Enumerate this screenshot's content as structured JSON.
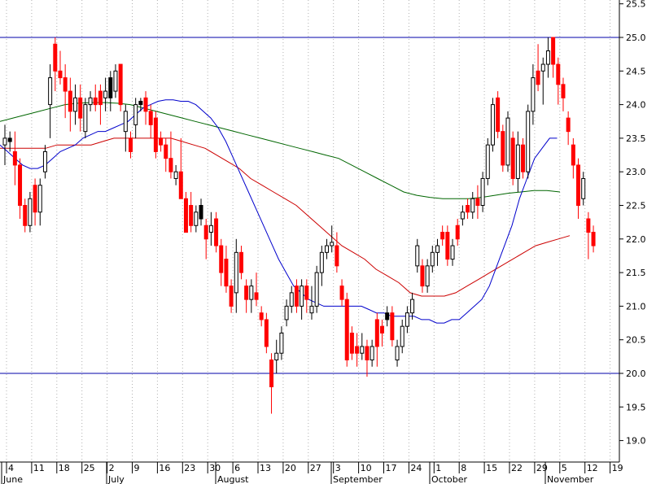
{
  "chart_data": {
    "type": "candlestick",
    "title": "",
    "xlabel": "",
    "ylabel": "",
    "ylim": [
      18.8,
      25.6
    ],
    "y_ticks": [
      "19.0",
      "19.5",
      "20.0",
      "20.5",
      "21.0",
      "21.5",
      "22.0",
      "22.5",
      "23.0",
      "23.5",
      "24.0",
      "24.5",
      "25.0",
      "25.5"
    ],
    "x_day_ticks": [
      "4",
      "11",
      "18",
      "25",
      "2",
      "9",
      "16",
      "23",
      "30",
      "6",
      "13",
      "20",
      "27",
      "3",
      "10",
      "17",
      "24",
      "1",
      "8",
      "15",
      "22",
      "29",
      "5",
      "12",
      "19"
    ],
    "months": [
      "June",
      "July",
      "August",
      "September",
      "October",
      "November"
    ],
    "horizontal_lines": [
      25.0,
      20.0
    ],
    "grid": "vertical dotted",
    "colors": {
      "up_candle": "#ffffff",
      "down_candle": "#ff0000",
      "black_candle": "#000000",
      "ma_fast": "#0000cc",
      "ma_mid": "#cc0000",
      "ma_slow": "#006600",
      "hline": "#0000aa"
    },
    "candles": [
      {
        "o": 23.4,
        "h": 23.7,
        "l": 23.1,
        "c": 23.5,
        "t": "up"
      },
      {
        "o": 23.5,
        "h": 23.6,
        "l": 23.3,
        "c": 23.45,
        "t": "black"
      },
      {
        "o": 23.3,
        "h": 23.6,
        "l": 22.8,
        "c": 23.1,
        "t": "down"
      },
      {
        "o": 23.1,
        "h": 23.2,
        "l": 22.3,
        "c": 22.5,
        "t": "down"
      },
      {
        "o": 22.5,
        "h": 22.6,
        "l": 22.1,
        "c": 22.2,
        "t": "down"
      },
      {
        "o": 22.2,
        "h": 22.7,
        "l": 22.1,
        "c": 22.6,
        "t": "up"
      },
      {
        "o": 22.8,
        "h": 22.9,
        "l": 22.2,
        "c": 22.4,
        "t": "down"
      },
      {
        "o": 22.4,
        "h": 22.9,
        "l": 22.2,
        "c": 22.8,
        "t": "up"
      },
      {
        "o": 23.0,
        "h": 23.4,
        "l": 22.9,
        "c": 23.3,
        "t": "up"
      },
      {
        "o": 24.0,
        "h": 24.6,
        "l": 23.5,
        "c": 24.4,
        "t": "up"
      },
      {
        "o": 24.9,
        "h": 25.0,
        "l": 24.2,
        "c": 24.5,
        "t": "down"
      },
      {
        "o": 24.5,
        "h": 24.8,
        "l": 24.3,
        "c": 24.4,
        "t": "down"
      },
      {
        "o": 24.4,
        "h": 24.6,
        "l": 23.8,
        "c": 24.2,
        "t": "down"
      },
      {
        "o": 24.2,
        "h": 24.4,
        "l": 23.6,
        "c": 23.9,
        "t": "down"
      },
      {
        "o": 23.9,
        "h": 24.3,
        "l": 23.7,
        "c": 24.1,
        "t": "up"
      },
      {
        "o": 24.1,
        "h": 24.3,
        "l": 23.6,
        "c": 23.8,
        "t": "down"
      },
      {
        "o": 23.6,
        "h": 24.1,
        "l": 23.5,
        "c": 24.0,
        "t": "up"
      },
      {
        "o": 24.0,
        "h": 24.2,
        "l": 23.9,
        "c": 24.1,
        "t": "up"
      },
      {
        "o": 24.1,
        "h": 24.3,
        "l": 23.9,
        "c": 24.0,
        "t": "down"
      },
      {
        "o": 24.0,
        "h": 24.3,
        "l": 23.7,
        "c": 24.2,
        "t": "down"
      },
      {
        "o": 24.2,
        "h": 24.4,
        "l": 23.9,
        "c": 24.1,
        "t": "up"
      },
      {
        "o": 24.1,
        "h": 24.5,
        "l": 23.9,
        "c": 24.4,
        "t": "black"
      },
      {
        "o": 24.2,
        "h": 24.6,
        "l": 24.1,
        "c": 24.5,
        "t": "up"
      },
      {
        "o": 24.6,
        "h": 24.6,
        "l": 23.9,
        "c": 24.0,
        "t": "down"
      },
      {
        "o": 23.9,
        "h": 24.0,
        "l": 23.3,
        "c": 23.6,
        "t": "up"
      },
      {
        "o": 23.5,
        "h": 23.6,
        "l": 23.2,
        "c": 23.3,
        "t": "down"
      },
      {
        "o": 23.7,
        "h": 24.1,
        "l": 23.5,
        "c": 24.0,
        "t": "up"
      },
      {
        "o": 24.0,
        "h": 24.1,
        "l": 23.9,
        "c": 24.05,
        "t": "black"
      },
      {
        "o": 24.1,
        "h": 24.2,
        "l": 23.7,
        "c": 23.9,
        "t": "down"
      },
      {
        "o": 23.9,
        "h": 24.0,
        "l": 23.5,
        "c": 23.7,
        "t": "down"
      },
      {
        "o": 23.8,
        "h": 23.9,
        "l": 23.2,
        "c": 23.3,
        "t": "down"
      },
      {
        "o": 23.5,
        "h": 23.6,
        "l": 23.3,
        "c": 23.4,
        "t": "down"
      },
      {
        "o": 23.4,
        "h": 23.5,
        "l": 23.0,
        "c": 23.2,
        "t": "down"
      },
      {
        "o": 23.2,
        "h": 23.6,
        "l": 22.9,
        "c": 23.0,
        "t": "down"
      },
      {
        "o": 23.0,
        "h": 23.1,
        "l": 22.8,
        "c": 22.9,
        "t": "up"
      },
      {
        "o": 23.0,
        "h": 23.5,
        "l": 22.6,
        "c": 22.6,
        "t": "down"
      },
      {
        "o": 22.6,
        "h": 22.7,
        "l": 22.1,
        "c": 22.1,
        "t": "down"
      },
      {
        "o": 22.5,
        "h": 22.7,
        "l": 22.1,
        "c": 22.2,
        "t": "down"
      },
      {
        "o": 22.2,
        "h": 22.5,
        "l": 22.1,
        "c": 22.4,
        "t": "up"
      },
      {
        "o": 22.5,
        "h": 22.6,
        "l": 22.2,
        "c": 22.3,
        "t": "black"
      },
      {
        "o": 22.2,
        "h": 22.3,
        "l": 21.7,
        "c": 22.0,
        "t": "down"
      },
      {
        "o": 22.1,
        "h": 22.4,
        "l": 21.9,
        "c": 22.2,
        "t": "up"
      },
      {
        "o": 22.3,
        "h": 22.4,
        "l": 21.8,
        "c": 21.9,
        "t": "down"
      },
      {
        "o": 21.9,
        "h": 22.0,
        "l": 21.3,
        "c": 21.5,
        "t": "down"
      },
      {
        "o": 21.7,
        "h": 21.9,
        "l": 21.2,
        "c": 21.3,
        "t": "down"
      },
      {
        "o": 21.3,
        "h": 21.4,
        "l": 20.9,
        "c": 21.0,
        "t": "down"
      },
      {
        "o": 21.2,
        "h": 22.0,
        "l": 20.9,
        "c": 21.8,
        "t": "up"
      },
      {
        "o": 21.8,
        "h": 21.9,
        "l": 21.4,
        "c": 21.5,
        "t": "down"
      },
      {
        "o": 21.3,
        "h": 21.4,
        "l": 20.9,
        "c": 21.1,
        "t": "down"
      },
      {
        "o": 21.1,
        "h": 21.4,
        "l": 20.9,
        "c": 21.3,
        "t": "up"
      },
      {
        "o": 21.2,
        "h": 21.5,
        "l": 21.0,
        "c": 21.1,
        "t": "down"
      },
      {
        "o": 20.9,
        "h": 21.0,
        "l": 20.7,
        "c": 20.8,
        "t": "down"
      },
      {
        "o": 20.8,
        "h": 20.9,
        "l": 20.3,
        "c": 20.4,
        "t": "down"
      },
      {
        "o": 20.2,
        "h": 20.3,
        "l": 19.4,
        "c": 19.8,
        "t": "down"
      },
      {
        "o": 20.2,
        "h": 20.5,
        "l": 20.0,
        "c": 20.3,
        "t": "up"
      },
      {
        "o": 20.3,
        "h": 20.7,
        "l": 20.2,
        "c": 20.6,
        "t": "up"
      },
      {
        "o": 20.8,
        "h": 21.1,
        "l": 20.7,
        "c": 21.0,
        "t": "up"
      },
      {
        "o": 21.0,
        "h": 21.3,
        "l": 20.9,
        "c": 21.2,
        "t": "up"
      },
      {
        "o": 21.3,
        "h": 21.4,
        "l": 20.9,
        "c": 21.0,
        "t": "down"
      },
      {
        "o": 21.0,
        "h": 21.4,
        "l": 20.8,
        "c": 21.3,
        "t": "up"
      },
      {
        "o": 21.3,
        "h": 21.4,
        "l": 20.9,
        "c": 21.1,
        "t": "down"
      },
      {
        "o": 20.9,
        "h": 21.3,
        "l": 20.8,
        "c": 21.0,
        "t": "up"
      },
      {
        "o": 21.0,
        "h": 21.6,
        "l": 20.9,
        "c": 21.5,
        "t": "up"
      },
      {
        "o": 21.5,
        "h": 21.9,
        "l": 21.3,
        "c": 21.8,
        "t": "up"
      },
      {
        "o": 21.8,
        "h": 22.0,
        "l": 21.7,
        "c": 21.9,
        "t": "up"
      },
      {
        "o": 21.9,
        "h": 22.2,
        "l": 21.8,
        "c": 21.95,
        "t": "up"
      },
      {
        "o": 21.9,
        "h": 22.1,
        "l": 21.5,
        "c": 21.6,
        "t": "down"
      },
      {
        "o": 21.3,
        "h": 21.4,
        "l": 21.0,
        "c": 21.1,
        "t": "down"
      },
      {
        "o": 21.1,
        "h": 21.2,
        "l": 20.1,
        "c": 20.2,
        "t": "down"
      },
      {
        "o": 20.6,
        "h": 20.7,
        "l": 20.2,
        "c": 20.3,
        "t": "down"
      },
      {
        "o": 20.4,
        "h": 20.6,
        "l": 20.1,
        "c": 20.3,
        "t": "down"
      },
      {
        "o": 20.3,
        "h": 20.6,
        "l": 20.2,
        "c": 20.4,
        "t": "up"
      },
      {
        "o": 20.4,
        "h": 20.5,
        "l": 19.95,
        "c": 20.2,
        "t": "down"
      },
      {
        "o": 20.2,
        "h": 20.5,
        "l": 20.1,
        "c": 20.4,
        "t": "up"
      },
      {
        "o": 20.4,
        "h": 20.9,
        "l": 20.1,
        "c": 20.8,
        "t": "down"
      },
      {
        "o": 20.6,
        "h": 20.8,
        "l": 20.4,
        "c": 20.7,
        "t": "down"
      },
      {
        "o": 20.8,
        "h": 21.0,
        "l": 20.7,
        "c": 20.9,
        "t": "black"
      },
      {
        "o": 20.9,
        "h": 21.0,
        "l": 20.4,
        "c": 20.5,
        "t": "down"
      },
      {
        "o": 20.2,
        "h": 20.5,
        "l": 20.1,
        "c": 20.4,
        "t": "up"
      },
      {
        "o": 20.4,
        "h": 20.8,
        "l": 20.3,
        "c": 20.7,
        "t": "up"
      },
      {
        "o": 20.7,
        "h": 21.0,
        "l": 20.6,
        "c": 20.9,
        "t": "up"
      },
      {
        "o": 20.9,
        "h": 21.2,
        "l": 20.8,
        "c": 21.1,
        "t": "up"
      },
      {
        "o": 21.6,
        "h": 22.0,
        "l": 21.5,
        "c": 21.9,
        "t": "up"
      },
      {
        "o": 21.6,
        "h": 21.7,
        "l": 21.2,
        "c": 21.3,
        "t": "down"
      },
      {
        "o": 21.3,
        "h": 21.7,
        "l": 21.2,
        "c": 21.6,
        "t": "up"
      },
      {
        "o": 21.6,
        "h": 21.9,
        "l": 21.5,
        "c": 21.8,
        "t": "up"
      },
      {
        "o": 21.8,
        "h": 22.0,
        "l": 21.6,
        "c": 21.9,
        "t": "up"
      },
      {
        "o": 22.1,
        "h": 22.2,
        "l": 21.9,
        "c": 22.0,
        "t": "down"
      },
      {
        "o": 22.1,
        "h": 22.2,
        "l": 21.6,
        "c": 21.7,
        "t": "down"
      },
      {
        "o": 21.7,
        "h": 22.0,
        "l": 21.6,
        "c": 21.9,
        "t": "up"
      },
      {
        "o": 22.0,
        "h": 22.3,
        "l": 21.9,
        "c": 22.2,
        "t": "down"
      },
      {
        "o": 22.3,
        "h": 22.5,
        "l": 22.2,
        "c": 22.4,
        "t": "up"
      },
      {
        "o": 22.5,
        "h": 22.6,
        "l": 22.3,
        "c": 22.4,
        "t": "down"
      },
      {
        "o": 22.4,
        "h": 22.7,
        "l": 22.3,
        "c": 22.6,
        "t": "up"
      },
      {
        "o": 22.6,
        "h": 22.8,
        "l": 22.3,
        "c": 22.5,
        "t": "down"
      },
      {
        "o": 22.5,
        "h": 23.0,
        "l": 22.4,
        "c": 22.9,
        "t": "up"
      },
      {
        "o": 22.9,
        "h": 23.5,
        "l": 22.8,
        "c": 23.4,
        "t": "up"
      },
      {
        "o": 23.4,
        "h": 24.1,
        "l": 23.3,
        "c": 24.0,
        "t": "up"
      },
      {
        "o": 24.1,
        "h": 24.2,
        "l": 23.5,
        "c": 23.6,
        "t": "down"
      },
      {
        "o": 23.6,
        "h": 23.7,
        "l": 23.0,
        "c": 23.1,
        "t": "down"
      },
      {
        "o": 23.1,
        "h": 23.9,
        "l": 23.0,
        "c": 23.8,
        "t": "up"
      },
      {
        "o": 23.5,
        "h": 23.6,
        "l": 22.8,
        "c": 22.9,
        "t": "down"
      },
      {
        "o": 22.9,
        "h": 23.6,
        "l": 22.7,
        "c": 23.4,
        "t": "up"
      },
      {
        "o": 23.4,
        "h": 23.5,
        "l": 22.9,
        "c": 23.0,
        "t": "down"
      },
      {
        "o": 23.0,
        "h": 24.0,
        "l": 22.9,
        "c": 23.9,
        "t": "up"
      },
      {
        "o": 23.9,
        "h": 24.6,
        "l": 23.7,
        "c": 24.4,
        "t": "up"
      },
      {
        "o": 24.3,
        "h": 24.9,
        "l": 24.2,
        "c": 24.5,
        "t": "down"
      },
      {
        "o": 24.5,
        "h": 24.7,
        "l": 24.0,
        "c": 24.6,
        "t": "up"
      },
      {
        "o": 24.6,
        "h": 25.0,
        "l": 24.4,
        "c": 24.8,
        "t": "up"
      },
      {
        "o": 25.0,
        "h": 25.0,
        "l": 24.4,
        "c": 24.6,
        "t": "down"
      },
      {
        "o": 24.6,
        "h": 24.7,
        "l": 24.0,
        "c": 24.3,
        "t": "down"
      },
      {
        "o": 24.3,
        "h": 24.4,
        "l": 23.9,
        "c": 24.1,
        "t": "down"
      },
      {
        "o": 23.8,
        "h": 23.9,
        "l": 23.4,
        "c": 23.6,
        "t": "down"
      },
      {
        "o": 23.4,
        "h": 23.5,
        "l": 22.9,
        "c": 23.1,
        "t": "down"
      },
      {
        "o": 23.1,
        "h": 23.2,
        "l": 22.3,
        "c": 22.5,
        "t": "down"
      },
      {
        "o": 22.6,
        "h": 23.0,
        "l": 22.5,
        "c": 22.9,
        "t": "up"
      },
      {
        "o": 22.3,
        "h": 22.4,
        "l": 21.7,
        "c": 22.1,
        "t": "down"
      },
      {
        "o": 22.1,
        "h": 22.2,
        "l": 21.8,
        "c": 21.9,
        "t": "down"
      }
    ],
    "ma_fast": [
      23.4,
      23.3,
      23.2,
      23.1,
      23.05,
      23.05,
      23.1,
      23.2,
      23.3,
      23.35,
      23.4,
      23.5,
      23.55,
      23.6,
      23.6,
      23.65,
      23.7,
      23.75,
      23.85,
      23.95,
      24.0,
      24.05,
      24.07,
      24.07,
      24.05,
      24.05,
      24.0,
      23.9,
      23.8,
      23.65,
      23.45,
      23.2,
      22.95,
      22.7,
      22.45,
      22.2,
      21.95,
      21.7,
      21.5,
      21.3,
      21.2,
      21.1,
      21.05,
      21.0,
      21.0,
      21.0,
      21.0,
      21.0,
      21.0,
      20.95,
      20.9,
      20.9,
      20.85,
      20.85,
      20.85,
      20.85,
      20.8,
      20.8,
      20.75,
      20.75,
      20.8,
      20.8,
      20.9,
      21.0,
      21.1,
      21.3,
      21.6,
      21.9,
      22.2,
      22.6,
      22.9,
      23.2,
      23.35,
      23.5,
      23.5
    ],
    "ma_mid": [
      23.35,
      23.35,
      23.35,
      23.35,
      23.35,
      23.4,
      23.4,
      23.4,
      23.4,
      23.45,
      23.5,
      23.5,
      23.5,
      23.5,
      23.5,
      23.5,
      23.45,
      23.4,
      23.35,
      23.25,
      23.15,
      23.05,
      22.9,
      22.8,
      22.7,
      22.6,
      22.5,
      22.35,
      22.2,
      22.05,
      21.9,
      21.8,
      21.7,
      21.55,
      21.45,
      21.35,
      21.2,
      21.15,
      21.15,
      21.15,
      21.2,
      21.3,
      21.4,
      21.5,
      21.6,
      21.7,
      21.8,
      21.9,
      21.95,
      22.0,
      22.05
    ],
    "ma_slow": [
      23.75,
      23.8,
      23.85,
      23.9,
      23.95,
      24.0,
      24.02,
      24.03,
      24.03,
      24.02,
      24.0,
      23.95,
      23.9,
      23.85,
      23.8,
      23.75,
      23.7,
      23.65,
      23.6,
      23.55,
      23.5,
      23.45,
      23.4,
      23.35,
      23.3,
      23.25,
      23.2,
      23.1,
      23.0,
      22.9,
      22.8,
      22.7,
      22.65,
      22.62,
      22.6,
      22.6,
      22.6,
      22.62,
      22.65,
      22.68,
      22.7,
      22.72,
      22.72,
      22.7
    ]
  }
}
